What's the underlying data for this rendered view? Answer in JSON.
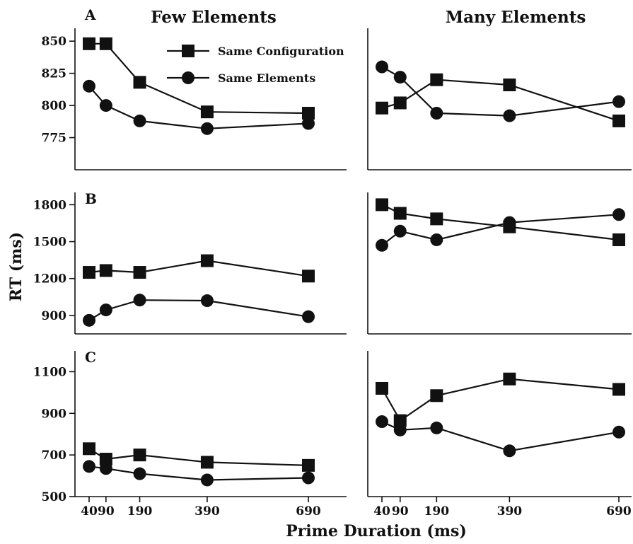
{
  "figure": {
    "column_titles": [
      "Few Elements",
      "Many Elements"
    ],
    "y_axis_title": "RT (ms)",
    "x_axis_title": "Prime Duration (ms)",
    "legend": [
      {
        "name": "Same Configuration",
        "marker": "square"
      },
      {
        "name": "Same Elements",
        "marker": "circle"
      }
    ],
    "color": "#111111"
  },
  "chart_data": [
    {
      "type": "line",
      "panel": "A",
      "panel_label": "A",
      "condition": "Few Elements",
      "x": [
        40,
        90,
        190,
        390,
        690
      ],
      "x_ticks": [],
      "xlim": [
        0,
        760
      ],
      "ylim": [
        750,
        860
      ],
      "y_ticks": [
        775,
        800,
        825,
        850
      ],
      "series": [
        {
          "name": "Same Configuration",
          "marker": "square",
          "values": [
            848,
            848,
            818,
            795,
            794
          ]
        },
        {
          "name": "Same Elements",
          "marker": "circle",
          "values": [
            815,
            800,
            788,
            782,
            786
          ]
        }
      ]
    },
    {
      "type": "line",
      "panel": "A",
      "panel_label": "",
      "condition": "Many Elements",
      "x": [
        40,
        90,
        190,
        390,
        690
      ],
      "x_ticks": [],
      "xlim": [
        0,
        760
      ],
      "ylim": [
        750,
        860
      ],
      "y_ticks": [],
      "series": [
        {
          "name": "Same Configuration",
          "marker": "square",
          "values": [
            798,
            802,
            820,
            816,
            788
          ]
        },
        {
          "name": "Same Elements",
          "marker": "circle",
          "values": [
            830,
            822,
            794,
            792,
            803
          ]
        }
      ]
    },
    {
      "type": "line",
      "panel": "B",
      "panel_label": "B",
      "condition": "Few Elements",
      "x": [
        40,
        90,
        190,
        390,
        690
      ],
      "x_ticks": [],
      "xlim": [
        0,
        760
      ],
      "ylim": [
        750,
        1900
      ],
      "y_ticks": [
        900,
        1200,
        1500,
        1800
      ],
      "series": [
        {
          "name": "Same Configuration",
          "marker": "square",
          "values": [
            1250,
            1265,
            1250,
            1345,
            1220
          ]
        },
        {
          "name": "Same Elements",
          "marker": "circle",
          "values": [
            860,
            945,
            1025,
            1020,
            890
          ]
        }
      ]
    },
    {
      "type": "line",
      "panel": "B",
      "panel_label": "",
      "condition": "Many Elements",
      "x": [
        40,
        90,
        190,
        390,
        690
      ],
      "x_ticks": [],
      "xlim": [
        0,
        760
      ],
      "ylim": [
        750,
        1900
      ],
      "y_ticks": [],
      "series": [
        {
          "name": "Same Configuration",
          "marker": "square",
          "values": [
            1800,
            1730,
            1685,
            1620,
            1515
          ]
        },
        {
          "name": "Same Elements",
          "marker": "circle",
          "values": [
            1470,
            1585,
            1515,
            1655,
            1720
          ]
        }
      ]
    },
    {
      "type": "line",
      "panel": "C",
      "panel_label": "C",
      "condition": "Few Elements",
      "x": [
        40,
        90,
        190,
        390,
        690
      ],
      "x_ticks": [
        40,
        90,
        190,
        390,
        690
      ],
      "xlim": [
        0,
        760
      ],
      "ylim": [
        500,
        1200
      ],
      "y_ticks": [
        500,
        700,
        900,
        1100
      ],
      "series": [
        {
          "name": "Same Configuration",
          "marker": "square",
          "values": [
            730,
            680,
            700,
            665,
            650
          ]
        },
        {
          "name": "Same Elements",
          "marker": "circle",
          "values": [
            645,
            635,
            610,
            580,
            590
          ]
        }
      ]
    },
    {
      "type": "line",
      "panel": "C",
      "panel_label": "",
      "condition": "Many Elements",
      "x": [
        40,
        90,
        190,
        390,
        690
      ],
      "x_ticks": [
        40,
        90,
        190,
        390,
        690
      ],
      "xlim": [
        0,
        760
      ],
      "ylim": [
        500,
        1200
      ],
      "y_ticks": [],
      "series": [
        {
          "name": "Same Configuration",
          "marker": "square",
          "values": [
            1020,
            865,
            985,
            1065,
            1015
          ]
        },
        {
          "name": "Same Elements",
          "marker": "circle",
          "values": [
            860,
            820,
            830,
            720,
            810
          ]
        }
      ]
    }
  ]
}
